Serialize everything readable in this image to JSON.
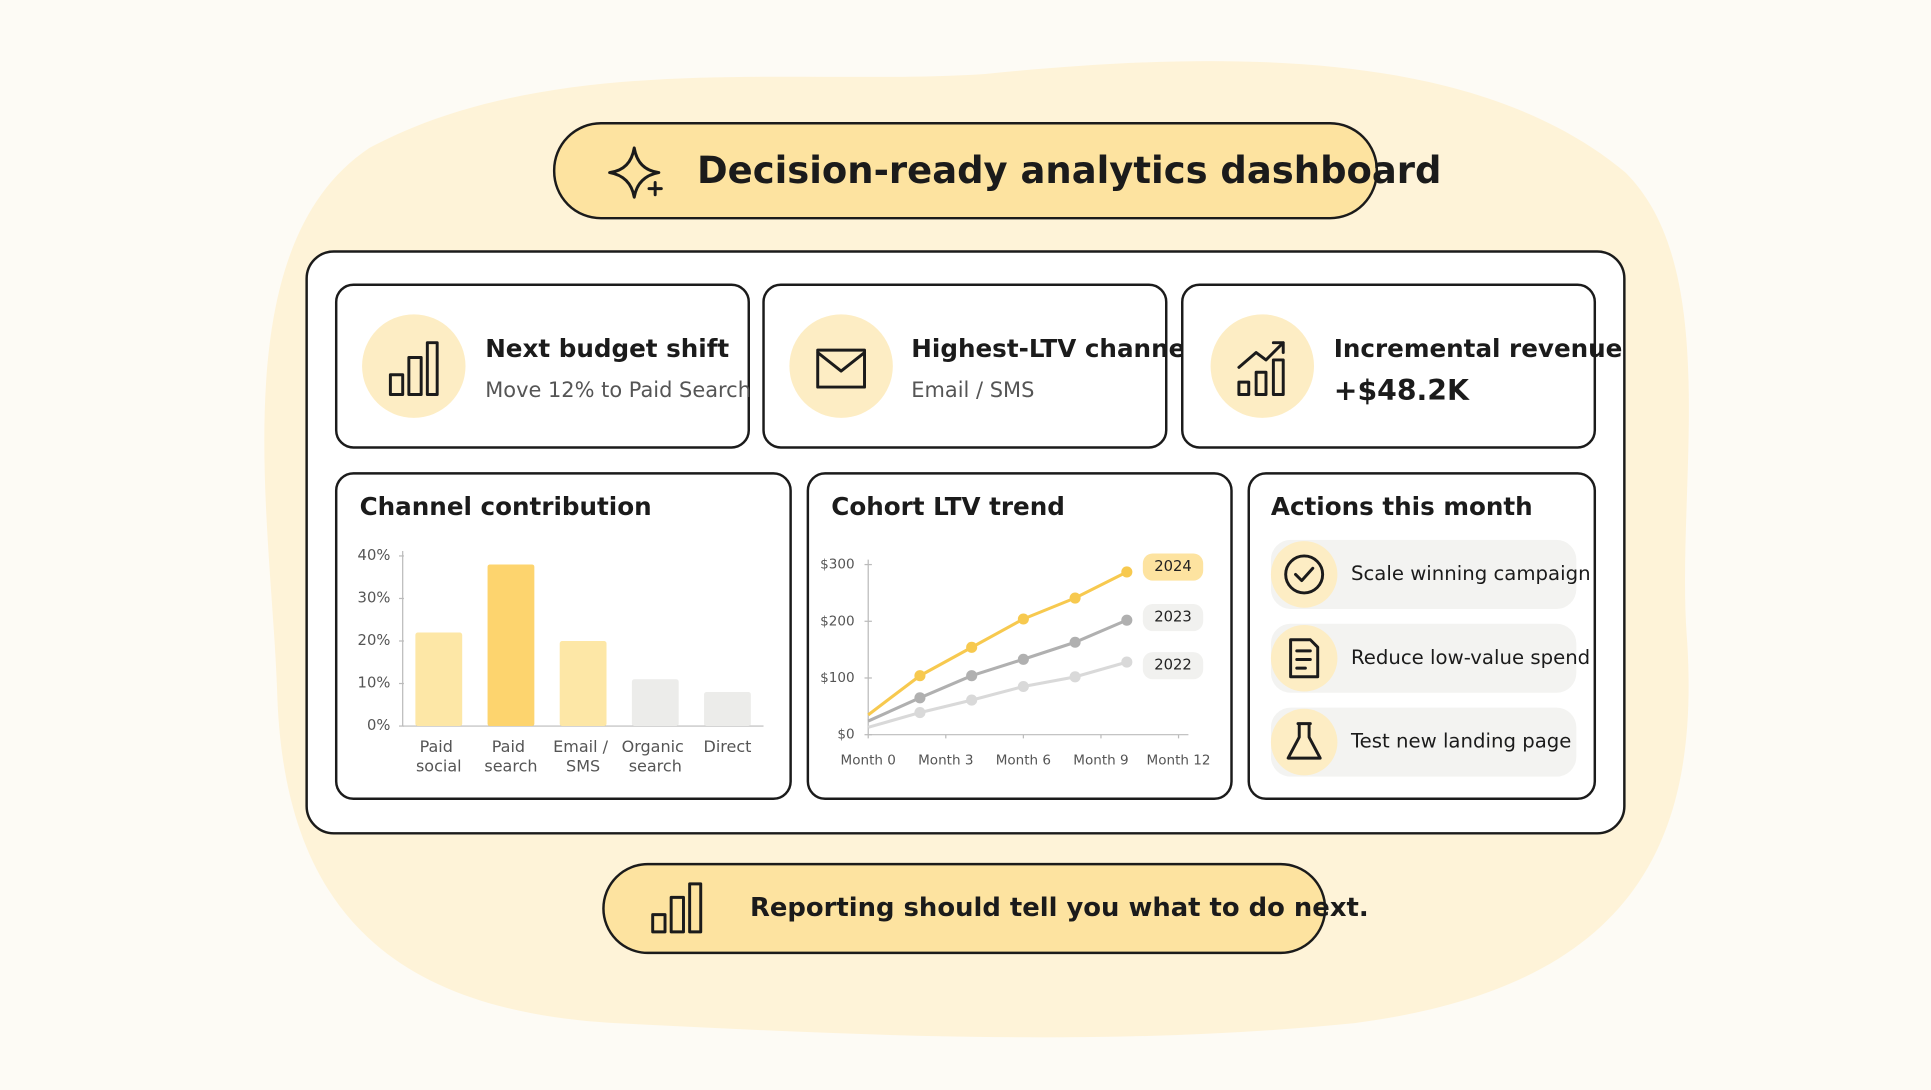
{
  "header": {
    "title": "Decision-ready analytics dashboard"
  },
  "kpis": [
    {
      "title": "Next budget shift",
      "value": "Move 12% to Paid Search"
    },
    {
      "title": "Highest-LTV channel",
      "value": "Email / SMS"
    },
    {
      "title": "Incremental revenue",
      "value": "+$48.2K"
    }
  ],
  "chart_data": [
    {
      "type": "bar",
      "title": "Channel contribution",
      "categories": [
        "Paid social",
        "Paid search",
        "Email / SMS",
        "Organic search",
        "Direct"
      ],
      "values": [
        22,
        38,
        20,
        11,
        8
      ],
      "colors": [
        "#fde7a6",
        "#fdd46e",
        "#fde7a6",
        "#ececea",
        "#ececea"
      ],
      "ylim": [
        0,
        40
      ],
      "yticks": [
        {
          "value": 0,
          "label": "0%"
        },
        {
          "value": 10,
          "label": "10%"
        },
        {
          "value": 20,
          "label": "20%"
        },
        {
          "value": 30,
          "label": "30%"
        },
        {
          "value": 40,
          "label": "40%"
        }
      ]
    },
    {
      "type": "line",
      "title": "Cohort LTV trend",
      "x": [
        0,
        2,
        4,
        6,
        8,
        10
      ],
      "xlim": [
        0,
        12
      ],
      "xticks": [
        {
          "value": 0,
          "label": "Month 0"
        },
        {
          "value": 3,
          "label": "Month 3"
        },
        {
          "value": 6,
          "label": "Month 6"
        },
        {
          "value": 9,
          "label": "Month 9"
        },
        {
          "value": 12,
          "label": "Month 12"
        }
      ],
      "ylim": [
        0,
        300
      ],
      "yticks": [
        {
          "value": 0,
          "label": "$0"
        },
        {
          "value": 100,
          "label": "$100"
        },
        {
          "value": 200,
          "label": "$200"
        },
        {
          "value": 300,
          "label": "$300"
        }
      ],
      "series": [
        {
          "name": "2024",
          "color": "#f7c94f",
          "values": [
            35,
            104,
            154,
            204,
            241,
            287
          ]
        },
        {
          "name": "2023",
          "color": "#b0b0b0",
          "values": [
            24,
            65,
            104,
            133,
            163,
            202
          ]
        },
        {
          "name": "2022",
          "color": "#d9d9d9",
          "values": [
            13,
            39,
            61,
            85,
            102,
            128
          ]
        }
      ]
    }
  ],
  "actions": [
    "Scale winning campaign",
    "Reduce low-value spend",
    "Test new landing page"
  ],
  "footer": {
    "text": "Reporting should tell you what to do next."
  }
}
